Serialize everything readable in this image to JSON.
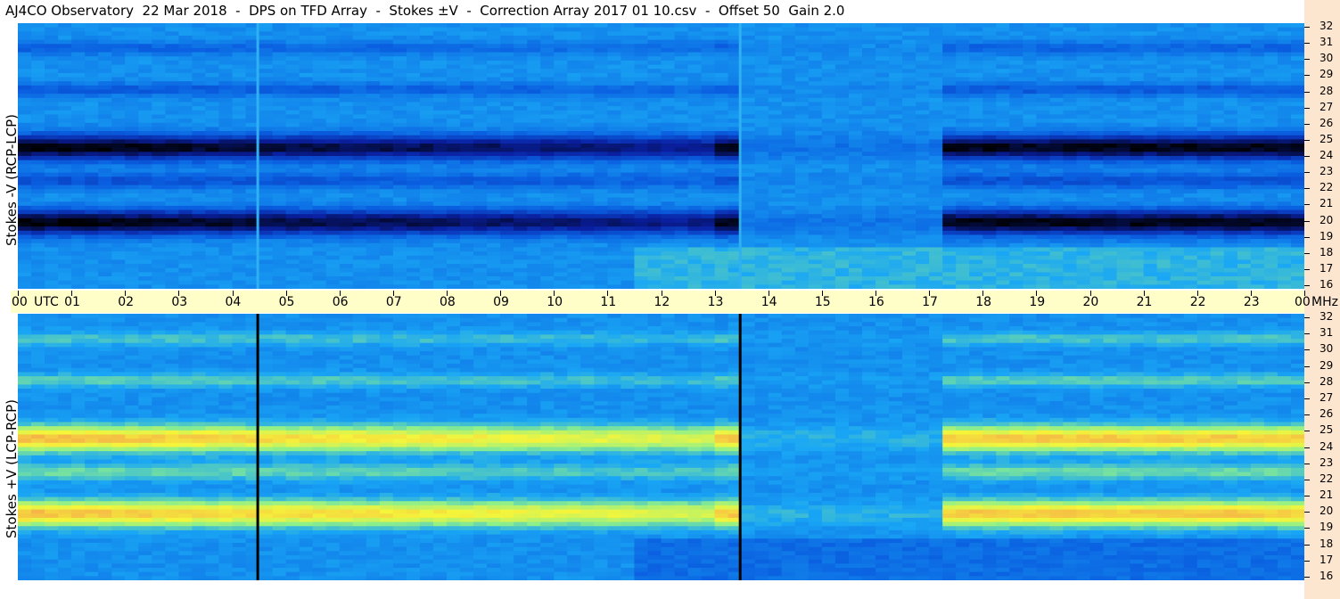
{
  "header": {
    "title": "AJ4CO Observatory  22 Mar 2018  -  DPS on TFD Array  -  Stokes ±V  -  Correction Array 2017 01 10.csv  -  Offset 50  Gain 2.0"
  },
  "chart_data": [
    {
      "type": "heatmap",
      "ylabel": "Stokes -V (RCP-LCP)",
      "y_range_mhz": [
        16,
        32
      ],
      "y_ticks": [
        "32",
        "31",
        "30",
        "29",
        "28",
        "27",
        "26",
        "25",
        "24",
        "23",
        "22",
        "21",
        "20",
        "19",
        "18",
        "17",
        "16"
      ],
      "colormap": [
        "#000000",
        "#0a1fa0",
        "#0a5ee0",
        "#19a6f5",
        "#8ef08a",
        "#f5f53a",
        "#f5a04a"
      ],
      "strong_bands_mhz": [
        24.5,
        20.0
      ],
      "strong_band_intensity": "dark"
    },
    {
      "type": "heatmap",
      "ylabel": "Stokes +V (LCP-RCP)",
      "y_range_mhz": [
        16,
        32
      ],
      "y_ticks": [
        "32",
        "31",
        "30",
        "29",
        "28",
        "27",
        "26",
        "25",
        "24",
        "23",
        "22",
        "21",
        "20",
        "19",
        "18",
        "17",
        "16"
      ],
      "colormap": [
        "#000000",
        "#0a1fa0",
        "#0a5ee0",
        "#19a6f5",
        "#8ef08a",
        "#f5f53a",
        "#f5a04a"
      ],
      "strong_bands_mhz": [
        24.5,
        20.0
      ],
      "strong_band_intensity": "bright"
    }
  ],
  "time_axis": {
    "labels": [
      "00",
      "UTC",
      "01",
      "02",
      "03",
      "04",
      "05",
      "06",
      "07",
      "08",
      "09",
      "10",
      "11",
      "12",
      "13",
      "14",
      "15",
      "16",
      "17",
      "18",
      "19",
      "20",
      "21",
      "22",
      "23",
      "00",
      "MHz"
    ],
    "hours": [
      0,
      1,
      2,
      3,
      4,
      5,
      6,
      7,
      8,
      9,
      10,
      11,
      12,
      13,
      14,
      15,
      16,
      17,
      18,
      19,
      20,
      21,
      22,
      23,
      24
    ],
    "gaps_utc": [
      4.45,
      13.45
    ],
    "quiet_period_utc": [
      13.5,
      17.2
    ]
  }
}
